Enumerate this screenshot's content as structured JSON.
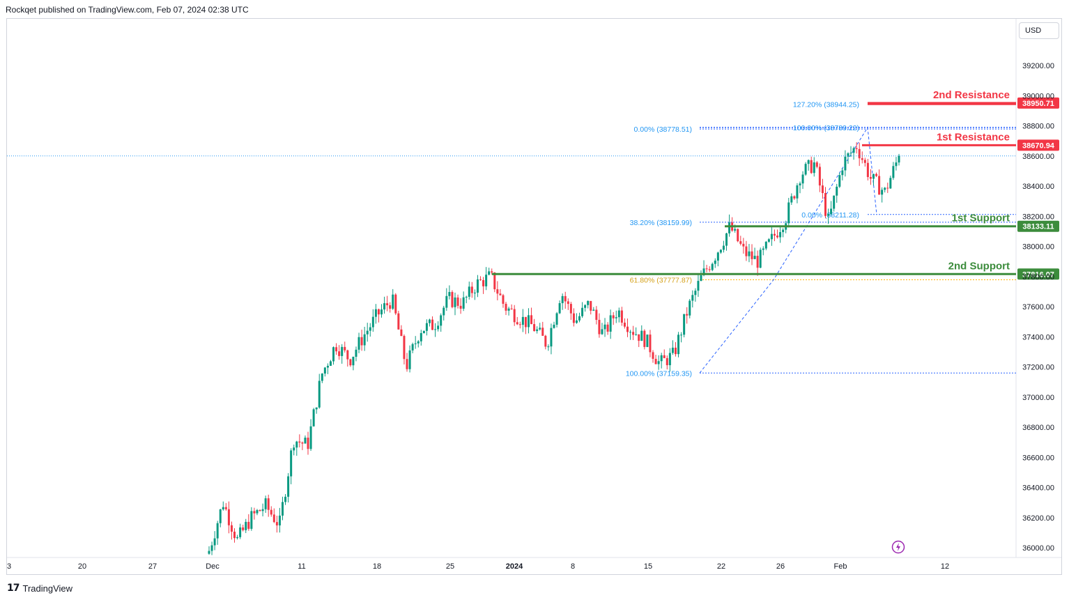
{
  "header": {
    "published": "Rockqet published on TradingView.com, Feb 07, 2024 02:38 UTC"
  },
  "footer": {
    "brand": "TradingView",
    "logo_glyph": "17"
  },
  "toolbar": {
    "currency": "USD"
  },
  "colors": {
    "up": "#089981",
    "down": "#f23645",
    "resistance": "#f23645",
    "support": "#3c8c3c",
    "fib": "#2962ff",
    "fib_text": "#2196f3",
    "golden": "#ffb300",
    "golden_text": "#d4a017",
    "axis_text": "#131722",
    "last_price_line": "#2196f3"
  },
  "chart_data": {
    "type": "candlestick",
    "ylim": [
      35820,
      39480
    ],
    "y_ticks": [
      "39200.00",
      "39000.00",
      "38800.00",
      "38600.00",
      "38400.00",
      "38200.00",
      "38000.00",
      "37800.00",
      "37600.00",
      "37400.00",
      "37200.00",
      "37000.00",
      "36800.00",
      "36600.00",
      "36400.00",
      "36200.00",
      "36000.00"
    ],
    "x_ticks": [
      "3",
      "20",
      "27",
      "Dec",
      "11",
      "18",
      "25",
      "2024",
      "8",
      "15",
      "22",
      "26",
      "Feb",
      "12"
    ],
    "x_tick_bold": [
      "2024"
    ],
    "candles_start": "Dec",
    "candles_end": "Feb 07",
    "candle_key_closes": [
      35980,
      36300,
      36050,
      36200,
      36280,
      36150,
      36720,
      36680,
      37150,
      37350,
      37250,
      37410,
      37550,
      37650,
      37200,
      37450,
      37480,
      37650,
      37620,
      37750,
      37800,
      37600,
      37530,
      37470,
      37350,
      37700,
      37500,
      37620,
      37410,
      37580,
      37450,
      37380,
      37220,
      37280,
      37580,
      37800,
      37950,
      38130,
      37960,
      37900,
      38050,
      38200,
      38480,
      38550,
      38160,
      38550,
      38670,
      38450,
      38360,
      38600
    ],
    "levels": [
      {
        "label": "2nd Resistance",
        "price_label": "38950.71",
        "value": 38950.71,
        "kind": "resistance"
      },
      {
        "label": "1st Resistance",
        "price_label": "38670.94",
        "value": 38670.94,
        "kind": "resistance"
      },
      {
        "label": "1st Support",
        "price_label": "38133.11",
        "value": 38133.11,
        "kind": "support"
      },
      {
        "label": "2nd Support",
        "price_label": "37816.07",
        "value": 37816.07,
        "kind": "support"
      }
    ],
    "fib_labels": [
      {
        "text": "127.20% (38944.25)",
        "value": 38944.25
      },
      {
        "text": "100.00% (38789.22)",
        "value": 38789.22
      },
      {
        "text": "0.00% (38778.51)",
        "value": 38778.51
      },
      {
        "text": "0.00% (38211.28)",
        "value": 38211.28
      },
      {
        "text": "38.20% (38159.99)",
        "value": 38159.99
      },
      {
        "text": "61.80% (37777.87)",
        "value": 37777.87,
        "golden": true
      },
      {
        "text": "100.00% (37159.35)",
        "value": 37159.35
      }
    ]
  }
}
